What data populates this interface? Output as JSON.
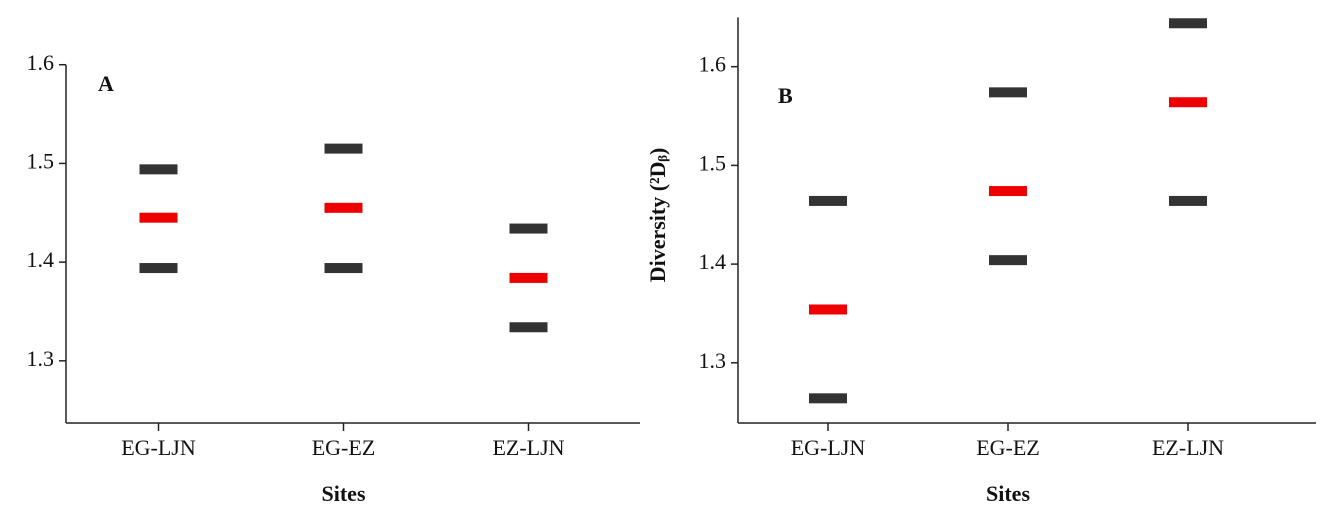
{
  "chart_data": [
    {
      "type": "dash",
      "annotation": "A",
      "x_label": "Sites",
      "categories": [
        "EG-LJN",
        "EG-EZ",
        "EZ-LJN"
      ],
      "series": [
        {
          "color": "#333333",
          "values": [
            1.494,
            1.515,
            1.434
          ]
        },
        {
          "color": "#ee0000",
          "values": [
            1.445,
            1.455,
            1.384
          ]
        },
        {
          "color": "#333333",
          "values": [
            1.394,
            1.394,
            1.334
          ]
        }
      ],
      "ylim": [
        1.237,
        1.6
      ],
      "yticks": [
        1.3,
        1.4,
        1.5,
        1.6
      ]
    },
    {
      "type": "dash",
      "annotation": "B",
      "x_label": "Sites",
      "y_label": "Diversity (²Dᵦ)",
      "categories": [
        "EG-LJN",
        "EG-EZ",
        "EZ-LJN"
      ],
      "series": [
        {
          "color": "#333333",
          "values": [
            1.464,
            1.574,
            1.644
          ]
        },
        {
          "color": "#ee0000",
          "values": [
            1.354,
            1.474,
            1.564
          ]
        },
        {
          "color": "#333333",
          "values": [
            1.264,
            1.404,
            1.464
          ]
        }
      ],
      "ylim": [
        1.239,
        1.65
      ],
      "yticks": [
        1.3,
        1.4,
        1.5,
        1.6
      ]
    }
  ]
}
